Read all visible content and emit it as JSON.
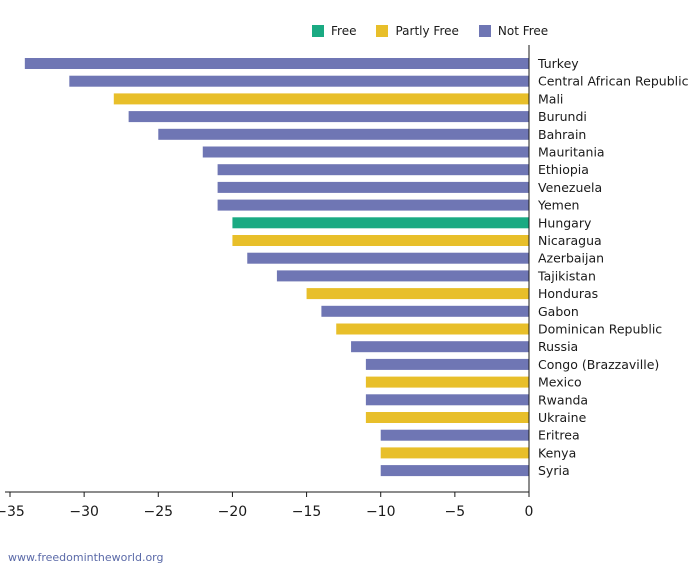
{
  "legend": [
    {
      "label": "Free",
      "color": "#1aaa82"
    },
    {
      "label": "Partly Free",
      "color": "#e8bf2a"
    },
    {
      "label": "Not Free",
      "color": "#6f76b4"
    }
  ],
  "source": "www.freedomintheworld.org",
  "chart_data": {
    "type": "bar",
    "orientation": "horizontal",
    "title": "",
    "xlabel": "",
    "ylabel": "",
    "xlim": [
      -35,
      0
    ],
    "xticks": [
      -35,
      -30,
      -25,
      -20,
      -15,
      -10,
      -5,
      0
    ],
    "xtick_labels": [
      "−35",
      "−30",
      "−25",
      "−20",
      "−15",
      "−10",
      "−5",
      "0"
    ],
    "grid": false,
    "legend_position": "top-right",
    "categories": [
      "Turkey",
      "Central African Republic",
      "Mali",
      "Burundi",
      "Bahrain",
      "Mauritania",
      "Ethiopia",
      "Venezuela",
      "Yemen",
      "Hungary",
      "Nicaragua",
      "Azerbaijan",
      "Tajikistan",
      "Honduras",
      "Gabon",
      "Dominican Republic",
      "Russia",
      "Congo (Brazzaville)",
      "Mexico",
      "Rwanda",
      "Ukraine",
      "Eritrea",
      "Kenya",
      "Syria"
    ],
    "values": [
      -34,
      -31,
      -28,
      -27,
      -25,
      -22,
      -21,
      -21,
      -21,
      -20,
      -20,
      -19,
      -17,
      -15,
      -14,
      -13,
      -12,
      -11,
      -11,
      -11,
      -11,
      -10,
      -10,
      -10
    ],
    "status": [
      "Not Free",
      "Not Free",
      "Partly Free",
      "Not Free",
      "Not Free",
      "Not Free",
      "Not Free",
      "Not Free",
      "Not Free",
      "Free",
      "Partly Free",
      "Not Free",
      "Not Free",
      "Partly Free",
      "Not Free",
      "Partly Free",
      "Not Free",
      "Not Free",
      "Partly Free",
      "Not Free",
      "Partly Free",
      "Not Free",
      "Partly Free",
      "Not Free"
    ]
  }
}
